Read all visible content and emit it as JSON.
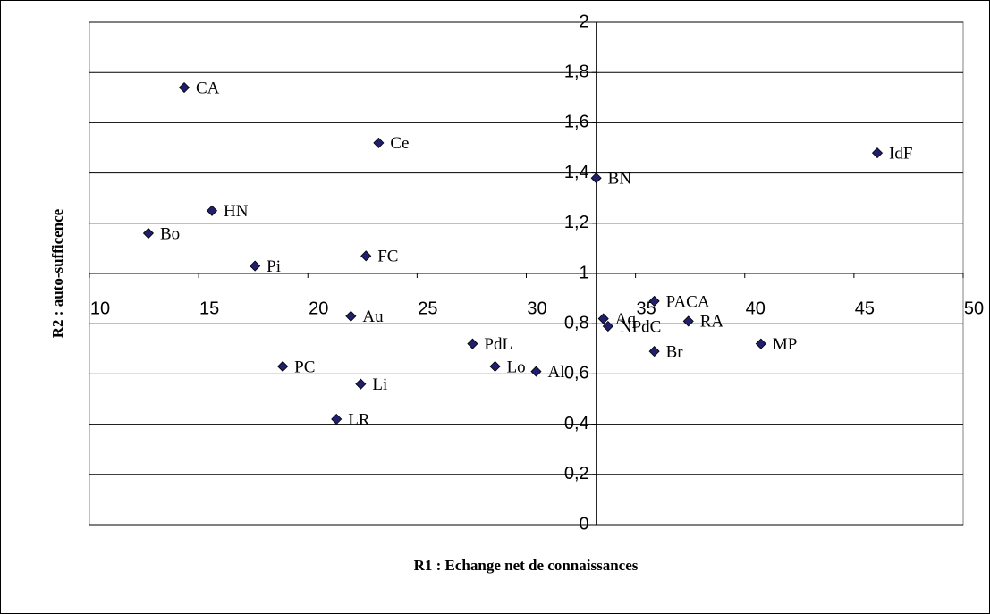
{
  "chart_data": {
    "type": "scatter",
    "xlabel": "R1 : Echange net de connaissances",
    "ylabel": "R2 : auto-sufficence",
    "color": "#1f1f6e",
    "points": [
      {
        "name": "CA",
        "x": 14.34,
        "y": 1.74
      },
      {
        "name": "Ce",
        "x": 23.24,
        "y": 1.52
      },
      {
        "name": "IdF",
        "x": 46.07,
        "y": 1.48
      },
      {
        "name": "BN",
        "x": 33.2,
        "y": 1.38
      },
      {
        "name": "HN",
        "x": 15.61,
        "y": 1.25
      },
      {
        "name": "Bo",
        "x": 12.7,
        "y": 1.16
      },
      {
        "name": "FC",
        "x": 22.66,
        "y": 1.07
      },
      {
        "name": "Pi",
        "x": 17.58,
        "y": 1.03
      },
      {
        "name": "PACA",
        "x": 35.86,
        "y": 0.89
      },
      {
        "name": "Aq",
        "x": 33.53,
        "y": 0.82
      },
      {
        "name": "NPdC",
        "x": 33.74,
        "y": 0.79
      },
      {
        "name": "RA",
        "x": 37.42,
        "y": 0.81
      },
      {
        "name": "Br",
        "x": 35.86,
        "y": 0.69
      },
      {
        "name": "MP",
        "x": 40.74,
        "y": 0.72
      },
      {
        "name": "Au",
        "x": 21.97,
        "y": 0.83
      },
      {
        "name": "PdL",
        "x": 27.54,
        "y": 0.72
      },
      {
        "name": "PC",
        "x": 18.85,
        "y": 0.63
      },
      {
        "name": "Lo",
        "x": 28.57,
        "y": 0.63
      },
      {
        "name": "Al",
        "x": 30.45,
        "y": 0.61
      },
      {
        "name": "Li",
        "x": 22.42,
        "y": 0.56
      },
      {
        "name": "LR",
        "x": 21.31,
        "y": 0.42
      }
    ],
    "xlim": [
      10,
      50
    ],
    "xticks": [
      10,
      15,
      20,
      25,
      30,
      35,
      40,
      45,
      50
    ],
    "ylim": [
      0,
      2
    ],
    "yticks": [
      0,
      {
        "value": 0.2,
        "label": "0,2"
      },
      {
        "value": 0.4,
        "label": "0,4"
      },
      {
        "value": 0.6,
        "label": "0,6"
      },
      {
        "value": 0.8,
        "label": "0,8"
      },
      1,
      {
        "value": 1.2,
        "label": "1,2"
      },
      {
        "value": 1.4,
        "label": "1,4"
      },
      {
        "value": 1.6,
        "label": "1,6"
      },
      {
        "value": 1.8,
        "label": "1,8"
      },
      2
    ],
    "grid": true,
    "y_axis_crosses_x": 33.2,
    "x_axis_crosses_y": 1
  }
}
